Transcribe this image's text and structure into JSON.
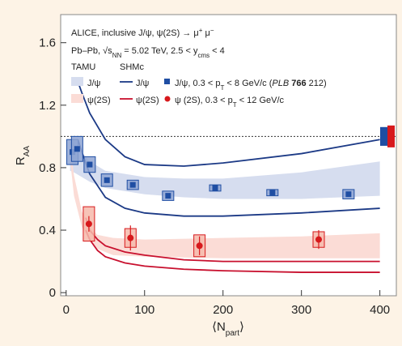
{
  "chart_data": {
    "type": "scatter",
    "legend_lines": [
      [
        "ALICE, inclusive J/ψ, ψ(2S) → μ",
        "+",
        " μ",
        "−"
      ],
      [
        "Pb–Pb, √s",
        "NN",
        " = 5.02 TeV, 2.5 < y",
        "cms",
        " < 4"
      ]
    ],
    "legend_headers": [
      "TAMU",
      "SHMc"
    ],
    "xlabel": [
      "⟨N",
      "part",
      "⟩"
    ],
    "ylabel": [
      "R",
      "AA"
    ],
    "xlim": [
      -7,
      421
    ],
    "ylim": [
      -0.02,
      1.78
    ],
    "xticks": [
      0,
      100,
      200,
      300,
      400
    ],
    "yticks": [
      0,
      0.4,
      0.8,
      1.2,
      1.6
    ],
    "reference_line": 1,
    "series": [
      {
        "name": "J/ψ",
        "kind": "band",
        "color": "#d6ddef",
        "x": [
          5,
          10,
          20,
          30,
          50,
          100,
          150,
          200,
          300,
          400
        ],
        "upper": [
          0.97,
          0.95,
          0.9,
          0.84,
          0.78,
          0.74,
          0.73,
          0.73,
          0.77,
          0.84
        ],
        "lower": [
          0.78,
          0.77,
          0.74,
          0.71,
          0.67,
          0.63,
          0.61,
          0.6,
          0.6,
          0.62
        ]
      },
      {
        "name": "ψ(2S)",
        "kind": "band",
        "color": "#fbdcd6",
        "x": [
          5,
          10,
          20,
          30,
          40,
          60,
          100,
          200,
          300,
          400
        ],
        "upper": [
          0.95,
          0.75,
          0.52,
          0.42,
          0.37,
          0.35,
          0.34,
          0.35,
          0.36,
          0.38
        ],
        "lower": [
          0.85,
          0.62,
          0.42,
          0.33,
          0.28,
          0.24,
          0.23,
          0.22,
          0.22,
          0.22
        ]
      },
      {
        "name": "J/ψ",
        "kind": "lines",
        "color": "#1c3a86",
        "x": [
          15,
          20,
          30,
          50,
          75,
          100,
          150,
          200,
          300,
          400
        ],
        "upper": [
          1.35,
          1.28,
          1.15,
          0.98,
          0.87,
          0.82,
          0.81,
          0.83,
          0.89,
          0.98
        ],
        "lower": [
          0.98,
          0.9,
          0.76,
          0.61,
          0.54,
          0.51,
          0.49,
          0.49,
          0.51,
          0.54
        ]
      },
      {
        "name": "ψ(2S)",
        "kind": "lines",
        "color": "#c8102e",
        "x": [
          25,
          30,
          40,
          50,
          75,
          100,
          150,
          200,
          300,
          400
        ],
        "upper": [
          0.48,
          0.4,
          0.34,
          0.3,
          0.26,
          0.24,
          0.21,
          0.2,
          0.2,
          0.2
        ],
        "lower": [
          0.4,
          0.34,
          0.27,
          0.23,
          0.19,
          0.17,
          0.15,
          0.14,
          0.13,
          0.13
        ]
      },
      {
        "name": [
          "J/ψ, 0.3 < p",
          "T",
          " < 8 GeV/c (",
          "PLB",
          " ",
          "766",
          " 212)"
        ],
        "kind": "points",
        "marker": "square",
        "color": "#1f4ea3",
        "box_color": "#8ea5d4",
        "global_syst": 0.06,
        "x": [
          8,
          14,
          30,
          52,
          85,
          130,
          190,
          263,
          360
        ],
        "values": [
          0.9,
          0.92,
          0.82,
          0.72,
          0.69,
          0.62,
          0.67,
          0.64,
          0.63
        ],
        "syst": [
          0.08,
          0.08,
          0.05,
          0.04,
          0.03,
          0.03,
          0.02,
          0.02,
          0.03
        ]
      },
      {
        "name": [
          "ψ (2S), 0.3 < p",
          "T",
          " < 12 GeV/c"
        ],
        "kind": "points",
        "marker": "circle",
        "color": "#d7191c",
        "box_color": "#f6b9aa",
        "global_syst": 0.07,
        "x": [
          29,
          82,
          170,
          322
        ],
        "values": [
          0.44,
          0.35,
          0.3,
          0.34
        ],
        "errors": [
          0.05,
          0.08,
          0.06,
          0.06
        ],
        "syst": [
          0.11,
          0.06,
          0.07,
          0.05
        ]
      }
    ]
  }
}
